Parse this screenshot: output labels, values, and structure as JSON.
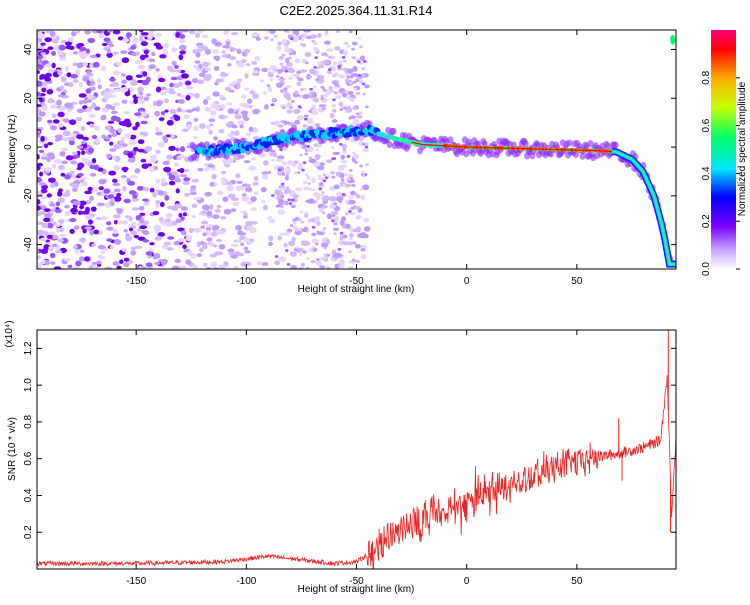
{
  "title": "C2E2.2025.364.11.31.R14",
  "chart_data": [
    {
      "type": "heatmap",
      "xlabel": "Height of straight line (km)",
      "ylabel": "Frequency (Hz)",
      "xlim": [
        -195,
        95
      ],
      "ylim": [
        -50,
        48
      ],
      "xticks": [
        -150,
        -100,
        -50,
        0,
        50
      ],
      "yticks": [
        -40,
        -20,
        0,
        20,
        40
      ],
      "grid": false,
      "colorbar": {
        "label": "Normalized spectral amplitude",
        "range": [
          0,
          1
        ],
        "ticks": [
          "0.0",
          "0.2",
          "0.4",
          "0.6",
          "0.8"
        ],
        "ticks_values": [
          0,
          0.2,
          0.4,
          0.6,
          0.8
        ],
        "colors": [
          "#ffffff",
          "#c8a2ff",
          "#7a00ff",
          "#0000ff",
          "#00e5ff",
          "#00ff66",
          "#c8ff00",
          "#ffaa00",
          "#ff0000",
          "#ff0080"
        ]
      },
      "ridge": {
        "x": [
          -120,
          -100,
          -80,
          -60,
          -45,
          -35,
          -20,
          0,
          20,
          40,
          60,
          68,
          75,
          80,
          85,
          88,
          90,
          92
        ],
        "y": [
          -2,
          0,
          4,
          6,
          7,
          4,
          1,
          0,
          -0.5,
          -1,
          -1.5,
          -2,
          -5,
          -10,
          -20,
          -30,
          -38,
          -48
        ]
      }
    },
    {
      "type": "line",
      "xlabel": "Height of straight line (km)",
      "ylabel": "SNR (10 * v/v)",
      "yscale_label": "(x10⁴)",
      "xlim": [
        -195,
        95
      ],
      "ylim": [
        0,
        1.3
      ],
      "xticks": [
        -150,
        -100,
        -50,
        0,
        50
      ],
      "yticks": [
        0.2,
        0.4,
        0.6,
        0.8,
        1.0,
        1.2
      ],
      "ytick_labels": [
        "0.2",
        "0.4",
        "0.6",
        "0.8",
        "1.0",
        "1.2"
      ],
      "grid": false,
      "series_color": "#ee2222",
      "trend": {
        "x": [
          -195,
          -150,
          -110,
          -90,
          -75,
          -60,
          -50,
          -42,
          -35,
          -28,
          -20,
          -10,
          0,
          10,
          20,
          30,
          40,
          50,
          60,
          70,
          80,
          88,
          91,
          93,
          95
        ],
        "y": [
          0.03,
          0.03,
          0.04,
          0.07,
          0.05,
          0.03,
          0.04,
          0.1,
          0.17,
          0.22,
          0.27,
          0.31,
          0.35,
          0.42,
          0.46,
          0.52,
          0.56,
          0.58,
          0.61,
          0.63,
          0.66,
          0.7,
          1.05,
          0.3,
          0.72
        ]
      },
      "spikes": [
        {
          "x": 91.5,
          "y": 1.3
        },
        {
          "x": 92.5,
          "y": 0.2
        },
        {
          "x": 70.5,
          "y": 0.48
        },
        {
          "x": 69,
          "y": 0.82
        }
      ]
    }
  ]
}
